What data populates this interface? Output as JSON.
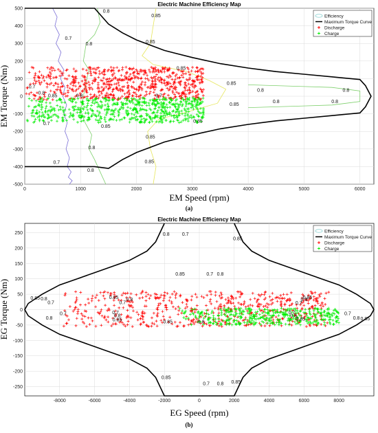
{
  "colors": {
    "discharge": "#ff0000",
    "charge": "#00ee00",
    "torque_curve": "#000000",
    "contour_0_7": "#7b6fd6",
    "contour_0_8": "#7ccf6a",
    "contour_0_85": "#e6e65a",
    "efficiency_legend": "#9fd9d9"
  },
  "chart_data": [
    {
      "type": "scatter",
      "panel_label": "(a)",
      "title": "Electric Machine Efficiency Map",
      "xlabel": "EM Speed (rpm)",
      "ylabel": "EM Torque (Nm)",
      "xlim": [
        0,
        6250
      ],
      "ylim": [
        -500,
        500
      ],
      "xticks": [
        0,
        1000,
        2000,
        3000,
        4000,
        5000,
        6000
      ],
      "yticks": [
        500,
        400,
        300,
        200,
        100,
        0,
        -100,
        -200,
        -300,
        -400,
        -500
      ],
      "grid": true,
      "legend": {
        "position": "top-right",
        "entries": [
          "Efficiency",
          "Maximum Torque Curve",
          "Discharge",
          "Charge"
        ]
      },
      "series": [
        {
          "name": "Maximum Torque Curve",
          "kind": "line",
          "x": [
            0,
            1250,
            1500,
            1750,
            2000,
            2500,
            3000,
            3500,
            4000,
            4500,
            5000,
            5500,
            6000,
            6100,
            6200,
            6100,
            6000,
            5500,
            5000,
            4500,
            4000,
            3500,
            3000,
            2500,
            2000,
            1750,
            1500,
            1250,
            0
          ],
          "y": [
            500,
            500,
            410,
            360,
            320,
            260,
            220,
            185,
            160,
            140,
            125,
            110,
            95,
            60,
            0,
            -60,
            -95,
            -110,
            -125,
            -140,
            -160,
            -185,
            -220,
            -260,
            -320,
            -360,
            -410,
            -400,
            -400
          ]
        },
        {
          "name": "Efficiency 0.7 contour",
          "kind": "contour",
          "level": "0.7",
          "x": [
            500,
            580,
            540,
            620,
            560,
            650,
            600,
            700,
            640,
            720,
            680,
            750,
            700,
            760,
            720,
            780,
            740,
            800,
            760,
            830,
            780,
            850,
            800
          ],
          "y": [
            500,
            450,
            400,
            350,
            300,
            250,
            200,
            150,
            100,
            50,
            0,
            -50,
            -100,
            -150,
            -200,
            -250,
            -300,
            -350,
            -400,
            -430,
            -460,
            -480,
            -500
          ],
          "labels": [
            {
              "text": "0.7",
              "x": 780,
              "y": 320
            },
            {
              "text": "0.7",
              "x": 390,
              "y": -165
            },
            {
              "text": "0.7",
              "x": 570,
              "y": -385
            }
          ]
        },
        {
          "name": "Efficiency 0.8 contour",
          "kind": "contour",
          "level": "0.8",
          "x": [
            1300,
            1350,
            1250,
            1100,
            1050,
            1150,
            1100,
            1050,
            1000,
            1080,
            1200,
            1150,
            1250,
            1350,
            1450
          ],
          "y": [
            500,
            420,
            350,
            300,
            200,
            150,
            80,
            0,
            -80,
            -150,
            -220,
            -300,
            -360,
            -430,
            -500
          ],
          "labels": [
            {
              "text": "0.8",
              "x": 1460,
              "y": 475
            },
            {
              "text": "0.8",
              "x": 1150,
              "y": 290
            },
            {
              "text": "0.8",
              "x": 1200,
              "y": -300
            },
            {
              "text": "0.8",
              "x": 1180,
              "y": -430
            }
          ]
        },
        {
          "name": "Efficiency 0.85 contour",
          "kind": "contour",
          "level": "0.85",
          "x": [
            2350,
            2300,
            2250,
            2100,
            2300,
            2900,
            3300,
            3600,
            3450,
            2900,
            2400,
            2200,
            2250,
            2350,
            2300
          ],
          "y": [
            500,
            400,
            300,
            230,
            180,
            140,
            90,
            40,
            -40,
            -90,
            -130,
            -200,
            -300,
            -400,
            -500
          ],
          "labels": [
            {
              "text": "0.85",
              "x": 2350,
              "y": 450
            },
            {
              "text": "0.85",
              "x": 2250,
              "y": 300
            },
            {
              "text": "0.85",
              "x": 2800,
              "y": 150
            },
            {
              "text": "0.85",
              "x": 3700,
              "y": 65
            },
            {
              "text": "0.85",
              "x": 3750,
              "y": -55
            },
            {
              "text": "0.85",
              "x": 1450,
              "y": -180
            },
            {
              "text": "0.85",
              "x": 2250,
              "y": -240
            },
            {
              "text": "0.85",
              "x": 2230,
              "y": -380
            }
          ]
        },
        {
          "name": "Efficiency 0.8 inner contour",
          "kind": "contour",
          "level": "0.8",
          "x": [
            4000,
            4500,
            5000,
            5500,
            6000,
            6000,
            5500,
            5000,
            4500,
            4000
          ],
          "y": [
            65,
            60,
            55,
            50,
            30,
            -30,
            -50,
            -55,
            -60,
            -65
          ],
          "labels": [
            {
              "text": "0.8",
              "x": 4220,
              "y": 25
            },
            {
              "text": "0.8",
              "x": 5750,
              "y": 25
            },
            {
              "text": "0.8",
              "x": 4500,
              "y": -40
            },
            {
              "text": "0.8",
              "x": 5550,
              "y": -40
            }
          ]
        }
      ],
      "scatter_regions": [
        {
          "name": "Discharge",
          "x": [
            20,
            3200
          ],
          "y": [
            -20,
            165
          ],
          "density": 700
        },
        {
          "name": "Charge",
          "x": [
            20,
            3200
          ],
          "y": [
            -150,
            -10
          ],
          "density": 650
        }
      ],
      "extra_contour_labels": [
        {
          "text": "0.7",
          "x": 130,
          "y": 45
        },
        {
          "text": "0.8",
          "x": 300,
          "y": 10
        },
        {
          "text": "0.85",
          "x": 500,
          "y": -5
        },
        {
          "text": "0.8",
          "x": 980,
          "y": -5
        },
        {
          "text": "0.7",
          "x": 2400,
          "y": -5
        },
        {
          "text": "0.85",
          "x": 3100,
          "y": -150
        }
      ]
    },
    {
      "type": "scatter",
      "panel_label": "(b)",
      "title": "Electric Machine Efficiency Map",
      "xlabel": "EG Speed (rpm)",
      "ylabel": "EG Torque (Nm)",
      "xlim": [
        -10000,
        10000
      ],
      "ylim": [
        -280,
        280
      ],
      "xticks": [
        -8000,
        -6000,
        -4000,
        -2000,
        0,
        2000,
        4000,
        6000,
        8000
      ],
      "yticks": [
        250,
        200,
        150,
        100,
        50,
        0,
        -50,
        -100,
        -150,
        -200,
        -250
      ],
      "grid": true,
      "legend": {
        "position": "top-right",
        "entries": [
          "Efficiency",
          "Maximum Torque Curve",
          "Discharge",
          "Charge"
        ]
      },
      "series": [
        {
          "name": "Maximum Torque Curve",
          "kind": "line",
          "x": [
            -2000,
            -2500,
            -3000,
            -4000,
            -5000,
            -6000,
            -7000,
            -8000,
            -9000,
            -9800,
            -10000,
            -9800,
            -9000,
            -8000,
            -7000,
            -6000,
            -5000,
            -4000,
            -3000,
            -2500,
            -2000,
            2000,
            2500,
            3000,
            4000,
            5000,
            6000,
            7000,
            8000,
            9000,
            9800,
            10000,
            9800,
            9000,
            8000,
            7000,
            6000,
            5000,
            4000,
            3000,
            2500,
            2000
          ],
          "y": [
            280,
            220,
            190,
            160,
            140,
            120,
            100,
            80,
            50,
            20,
            0,
            -20,
            -50,
            -80,
            -100,
            -120,
            -140,
            -160,
            -190,
            -220,
            -280,
            -280,
            -220,
            -190,
            -160,
            -140,
            -120,
            -100,
            -80,
            -50,
            -20,
            0,
            20,
            50,
            80,
            100,
            120,
            140,
            160,
            190,
            220,
            280
          ]
        }
      ],
      "scatter_regions": [
        {
          "name": "Discharge",
          "x": [
            -8000,
            7500
          ],
          "y": [
            -55,
            60
          ],
          "density": 600
        },
        {
          "name": "Charge",
          "x": [
            -1200,
            8000
          ],
          "y": [
            -50,
            5
          ],
          "density": 400
        }
      ],
      "contour_labels": [
        {
          "text": "0.8",
          "x": -1900,
          "y": 240
        },
        {
          "text": "0.7",
          "x": -800,
          "y": 240
        },
        {
          "text": "0.85",
          "x": 2200,
          "y": 225
        },
        {
          "text": "0.85",
          "x": -1100,
          "y": 110
        },
        {
          "text": "0.8",
          "x": 1200,
          "y": 110
        },
        {
          "text": "0.7",
          "x": 600,
          "y": 110
        },
        {
          "text": "0.85",
          "x": -9400,
          "y": 32
        },
        {
          "text": "0.8",
          "x": -8900,
          "y": 30
        },
        {
          "text": "0.7",
          "x": -8500,
          "y": 18
        },
        {
          "text": "0.85",
          "x": -4900,
          "y": 35
        },
        {
          "text": "0.8",
          "x": -4000,
          "y": 28
        },
        {
          "text": "0.7",
          "x": -4400,
          "y": 18
        },
        {
          "text": "0.7",
          "x": -7800,
          "y": -18
        },
        {
          "text": "0.8",
          "x": -8600,
          "y": -32
        },
        {
          "text": "0.7",
          "x": -4800,
          "y": -14
        },
        {
          "text": "0.8",
          "x": -4700,
          "y": -25
        },
        {
          "text": "0.85",
          "x": -4700,
          "y": -38
        },
        {
          "text": "0.85",
          "x": -1800,
          "y": -45
        },
        {
          "text": "0.8",
          "x": 100,
          "y": -45
        },
        {
          "text": "0.85",
          "x": 6200,
          "y": 35
        },
        {
          "text": "0.8",
          "x": 6000,
          "y": 28
        },
        {
          "text": "0.7",
          "x": 5700,
          "y": 17
        },
        {
          "text": "0.7",
          "x": 5300,
          "y": -14
        },
        {
          "text": "0.8",
          "x": 5400,
          "y": -24
        },
        {
          "text": "0.85",
          "x": 5800,
          "y": -36
        },
        {
          "text": "0.7",
          "x": 8500,
          "y": -18
        },
        {
          "text": "0.8",
          "x": 9000,
          "y": -32
        },
        {
          "text": "0.85",
          "x": 9500,
          "y": -35
        },
        {
          "text": "0.85",
          "x": -1900,
          "y": -225
        },
        {
          "text": "0.7",
          "x": 400,
          "y": -245
        },
        {
          "text": "0.8",
          "x": 1200,
          "y": -245
        },
        {
          "text": "0.85",
          "x": 2100,
          "y": -240
        }
      ]
    }
  ]
}
